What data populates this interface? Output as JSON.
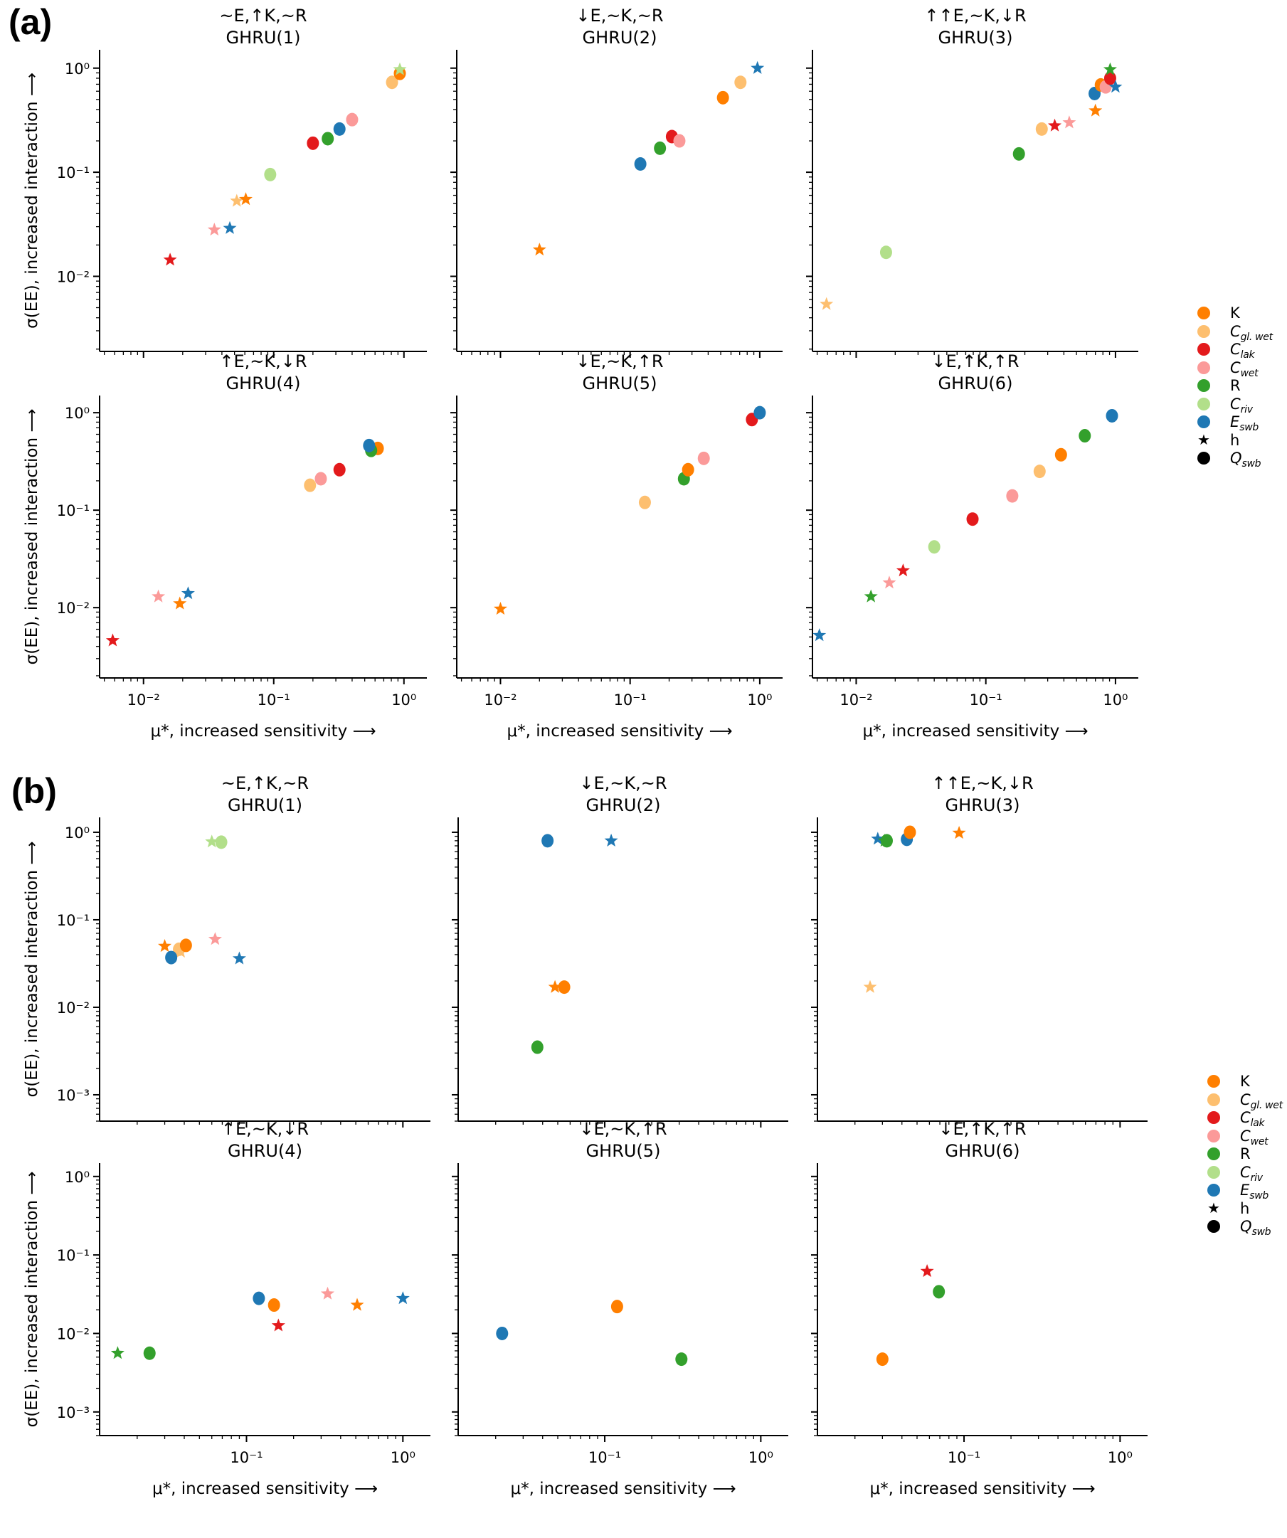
{
  "figure": {
    "panel_labels": [
      "(a)",
      "(b)"
    ],
    "legend": {
      "items": [
        {
          "key": "K",
          "label": "K",
          "sub": "",
          "italic": false,
          "color": "#ff7f00",
          "marker": "circle"
        },
        {
          "key": "Cglwet",
          "label": "C",
          "sub": "gl. wet",
          "italic": true,
          "color": "#fdbf6f",
          "marker": "circle"
        },
        {
          "key": "Clak",
          "label": "C",
          "sub": "lak",
          "italic": true,
          "color": "#e31a1c",
          "marker": "circle"
        },
        {
          "key": "Cwet",
          "label": "C",
          "sub": "wet",
          "italic": true,
          "color": "#fb9a99",
          "marker": "circle"
        },
        {
          "key": "R",
          "label": "R",
          "sub": "",
          "italic": false,
          "color": "#33a02c",
          "marker": "circle"
        },
        {
          "key": "Criv",
          "label": "C",
          "sub": "riv",
          "italic": true,
          "color": "#b2df8a",
          "marker": "circle"
        },
        {
          "key": "Eswb",
          "label": "E",
          "sub": "swb",
          "italic": true,
          "color": "#1f78b4",
          "marker": "circle"
        },
        {
          "key": "h",
          "label": "h",
          "sub": "",
          "italic": false,
          "color": "#000000",
          "marker": "star"
        },
        {
          "key": "Qswb",
          "label": "Q",
          "sub": "swb",
          "italic": true,
          "color": "#000000",
          "marker": "circle"
        }
      ]
    }
  },
  "chart_data": [
    {
      "type": "scatter",
      "panel": "(a)",
      "xscale": "log",
      "yscale": "log",
      "xlabel": "μ*, increased sensitivity ⟶",
      "ylabel": "σ(EE), increased interaction ⟶",
      "xlim": [
        0.0046,
        1.5
      ],
      "ylim": [
        0.0019,
        1.5
      ],
      "xticks": [
        0.01,
        0.1,
        1
      ],
      "xtick_labels": [
        "10⁻²",
        "10⁻¹",
        "10⁰"
      ],
      "yticks": [
        0.01,
        0.1,
        1
      ],
      "ytick_labels": [
        "10⁻²",
        "10⁻¹",
        "10⁰"
      ],
      "grid": false,
      "legend_position": "right",
      "subplots": [
        {
          "title": "~E,↑K,~R",
          "subtitle": "GHRU(1)",
          "points": [
            {
              "param": "Clak",
              "marker": "star",
              "x": 0.016,
              "y": 0.0144
            },
            {
              "param": "Cwet",
              "marker": "star",
              "x": 0.035,
              "y": 0.028
            },
            {
              "param": "Eswb",
              "marker": "star",
              "x": 0.046,
              "y": 0.029
            },
            {
              "param": "Cglwet",
              "marker": "star",
              "x": 0.052,
              "y": 0.053
            },
            {
              "param": "K",
              "marker": "star",
              "x": 0.061,
              "y": 0.055
            },
            {
              "param": "Criv",
              "marker": "circle",
              "x": 0.094,
              "y": 0.095
            },
            {
              "param": "Clak",
              "marker": "circle",
              "x": 0.2,
              "y": 0.19
            },
            {
              "param": "R",
              "marker": "circle",
              "x": 0.26,
              "y": 0.21
            },
            {
              "param": "Eswb",
              "marker": "circle",
              "x": 0.32,
              "y": 0.26
            },
            {
              "param": "Cwet",
              "marker": "circle",
              "x": 0.4,
              "y": 0.32
            },
            {
              "param": "Cglwet",
              "marker": "circle",
              "x": 0.81,
              "y": 0.73
            },
            {
              "param": "K",
              "marker": "circle",
              "x": 0.93,
              "y": 0.89
            },
            {
              "param": "Criv",
              "marker": "star",
              "x": 0.93,
              "y": 0.97
            }
          ]
        },
        {
          "title": "↓E,~K,~R",
          "subtitle": "GHRU(2)",
          "points": [
            {
              "param": "K",
              "marker": "star",
              "x": 0.02,
              "y": 0.018
            },
            {
              "param": "Eswb",
              "marker": "circle",
              "x": 0.12,
              "y": 0.12
            },
            {
              "param": "R",
              "marker": "circle",
              "x": 0.17,
              "y": 0.17
            },
            {
              "param": "Clak",
              "marker": "circle",
              "x": 0.21,
              "y": 0.22
            },
            {
              "param": "Cwet",
              "marker": "circle",
              "x": 0.24,
              "y": 0.2
            },
            {
              "param": "K",
              "marker": "circle",
              "x": 0.52,
              "y": 0.52
            },
            {
              "param": "Cglwet",
              "marker": "circle",
              "x": 0.71,
              "y": 0.73
            },
            {
              "param": "Eswb",
              "marker": "star",
              "x": 0.96,
              "y": 1.0
            }
          ]
        },
        {
          "title": "↑↑E,~K,↓R",
          "subtitle": "GHRU(3)",
          "points": [
            {
              "param": "Cglwet",
              "marker": "star",
              "x": 0.0059,
              "y": 0.0054
            },
            {
              "param": "Criv",
              "marker": "circle",
              "x": 0.017,
              "y": 0.017
            },
            {
              "param": "R",
              "marker": "circle",
              "x": 0.18,
              "y": 0.15
            },
            {
              "param": "Cglwet",
              "marker": "circle",
              "x": 0.27,
              "y": 0.26
            },
            {
              "param": "Clak",
              "marker": "star",
              "x": 0.34,
              "y": 0.28
            },
            {
              "param": "Cwet",
              "marker": "star",
              "x": 0.44,
              "y": 0.3
            },
            {
              "param": "K",
              "marker": "star",
              "x": 0.7,
              "y": 0.39
            },
            {
              "param": "Eswb",
              "marker": "circle",
              "x": 0.69,
              "y": 0.57
            },
            {
              "param": "K",
              "marker": "circle",
              "x": 0.77,
              "y": 0.69
            },
            {
              "param": "Cwet",
              "marker": "circle",
              "x": 0.84,
              "y": 0.66
            },
            {
              "param": "Clak",
              "marker": "circle",
              "x": 0.91,
              "y": 0.8
            },
            {
              "param": "R",
              "marker": "star",
              "x": 0.91,
              "y": 0.97
            },
            {
              "param": "Eswb",
              "marker": "star",
              "x": 1.0,
              "y": 0.66
            }
          ]
        },
        {
          "title": "↑E,~K,↓R",
          "subtitle": "GHRU(4)",
          "points": [
            {
              "param": "Clak",
              "marker": "star",
              "x": 0.0058,
              "y": 0.0046
            },
            {
              "param": "Cwet",
              "marker": "star",
              "x": 0.013,
              "y": 0.013
            },
            {
              "param": "K",
              "marker": "star",
              "x": 0.019,
              "y": 0.011
            },
            {
              "param": "Eswb",
              "marker": "star",
              "x": 0.022,
              "y": 0.014
            },
            {
              "param": "Cglwet",
              "marker": "circle",
              "x": 0.19,
              "y": 0.18
            },
            {
              "param": "Cwet",
              "marker": "circle",
              "x": 0.23,
              "y": 0.21
            },
            {
              "param": "Clak",
              "marker": "circle",
              "x": 0.32,
              "y": 0.26
            },
            {
              "param": "K",
              "marker": "circle",
              "x": 0.63,
              "y": 0.43
            },
            {
              "param": "R",
              "marker": "circle",
              "x": 0.56,
              "y": 0.41
            },
            {
              "param": "Eswb",
              "marker": "circle",
              "x": 0.54,
              "y": 0.46
            }
          ]
        },
        {
          "title": "↓E,~K,↑R",
          "subtitle": "GHRU(5)",
          "points": [
            {
              "param": "K",
              "marker": "star",
              "x": 0.01,
              "y": 0.0097
            },
            {
              "param": "Cglwet",
              "marker": "circle",
              "x": 0.13,
              "y": 0.12
            },
            {
              "param": "R",
              "marker": "circle",
              "x": 0.26,
              "y": 0.21
            },
            {
              "param": "K",
              "marker": "circle",
              "x": 0.28,
              "y": 0.26
            },
            {
              "param": "Cwet",
              "marker": "circle",
              "x": 0.37,
              "y": 0.34
            },
            {
              "param": "Clak",
              "marker": "circle",
              "x": 0.87,
              "y": 0.85
            },
            {
              "param": "Eswb",
              "marker": "circle",
              "x": 1.0,
              "y": 1.0
            }
          ]
        },
        {
          "title": "↓E,↑K,↑R",
          "subtitle": "GHRU(6)",
          "points": [
            {
              "param": "Eswb",
              "marker": "star",
              "x": 0.0052,
              "y": 0.0052
            },
            {
              "param": "R",
              "marker": "star",
              "x": 0.013,
              "y": 0.013
            },
            {
              "param": "Cwet",
              "marker": "star",
              "x": 0.018,
              "y": 0.018
            },
            {
              "param": "Clak",
              "marker": "star",
              "x": 0.023,
              "y": 0.024
            },
            {
              "param": "Criv",
              "marker": "circle",
              "x": 0.04,
              "y": 0.042
            },
            {
              "param": "Clak",
              "marker": "circle",
              "x": 0.079,
              "y": 0.081
            },
            {
              "param": "Cwet",
              "marker": "circle",
              "x": 0.16,
              "y": 0.14
            },
            {
              "param": "Cglwet",
              "marker": "circle",
              "x": 0.26,
              "y": 0.25
            },
            {
              "param": "K",
              "marker": "circle",
              "x": 0.38,
              "y": 0.37
            },
            {
              "param": "R",
              "marker": "circle",
              "x": 0.58,
              "y": 0.58
            },
            {
              "param": "Eswb",
              "marker": "circle",
              "x": 0.94,
              "y": 0.93
            }
          ]
        }
      ]
    },
    {
      "type": "scatter",
      "panel": "(b)",
      "xscale": "log",
      "yscale": "log",
      "xlabel": "μ*, increased sensitivity ⟶",
      "ylabel": "σ(EE), increased interaction ⟶",
      "xlim": [
        0.0115,
        1.5
      ],
      "ylim": [
        0.0005,
        1.48
      ],
      "xticks": [
        0.1,
        1
      ],
      "xtick_labels": [
        "10⁻¹",
        "10⁰"
      ],
      "yticks": [
        0.001,
        0.01,
        0.1,
        1
      ],
      "ytick_labels": [
        "10⁻³",
        "10⁻²",
        "10⁻¹",
        "10⁰"
      ],
      "grid": false,
      "legend_position": "right",
      "subplots": [
        {
          "title": "~E,↑K,~R",
          "subtitle": "GHRU(1)",
          "points": [
            {
              "param": "Criv",
              "marker": "star",
              "x": 0.06,
              "y": 0.78
            },
            {
              "param": "Criv",
              "marker": "circle",
              "x": 0.069,
              "y": 0.77
            },
            {
              "param": "K",
              "marker": "star",
              "x": 0.03,
              "y": 0.05
            },
            {
              "param": "Cglwet",
              "marker": "star",
              "x": 0.038,
              "y": 0.043
            },
            {
              "param": "Cglwet",
              "marker": "circle",
              "x": 0.037,
              "y": 0.046
            },
            {
              "param": "K",
              "marker": "circle",
              "x": 0.041,
              "y": 0.051
            },
            {
              "param": "Eswb",
              "marker": "circle",
              "x": 0.033,
              "y": 0.037
            },
            {
              "param": "Cwet",
              "marker": "star",
              "x": 0.063,
              "y": 0.06
            },
            {
              "param": "Eswb",
              "marker": "star",
              "x": 0.09,
              "y": 0.036
            }
          ]
        },
        {
          "title": "↓E,~K,~R",
          "subtitle": "GHRU(2)",
          "points": [
            {
              "param": "Eswb",
              "marker": "circle",
              "x": 0.043,
              "y": 0.8
            },
            {
              "param": "Eswb",
              "marker": "star",
              "x": 0.11,
              "y": 0.8
            },
            {
              "param": "K",
              "marker": "star",
              "x": 0.048,
              "y": 0.017
            },
            {
              "param": "K",
              "marker": "circle",
              "x": 0.055,
              "y": 0.017
            },
            {
              "param": "R",
              "marker": "circle",
              "x": 0.037,
              "y": 0.0035
            }
          ]
        },
        {
          "title": "↑↑E,~K,↓R",
          "subtitle": "GHRU(3)",
          "points": [
            {
              "param": "Cglwet",
              "marker": "star",
              "x": 0.025,
              "y": 0.017
            },
            {
              "param": "Eswb",
              "marker": "star",
              "x": 0.028,
              "y": 0.84
            },
            {
              "param": "R",
              "marker": "star",
              "x": 0.031,
              "y": 0.8
            },
            {
              "param": "R",
              "marker": "circle",
              "x": 0.032,
              "y": 0.8
            },
            {
              "param": "Eswb",
              "marker": "circle",
              "x": 0.043,
              "y": 0.83
            },
            {
              "param": "K",
              "marker": "circle",
              "x": 0.045,
              "y": 1.0
            },
            {
              "param": "K",
              "marker": "star",
              "x": 0.093,
              "y": 0.98
            }
          ]
        },
        {
          "title": "↑E,~K,↓R",
          "subtitle": "GHRU(4)",
          "points": [
            {
              "param": "R",
              "marker": "star",
              "x": 0.015,
              "y": 0.0056
            },
            {
              "param": "R",
              "marker": "circle",
              "x": 0.024,
              "y": 0.0056
            },
            {
              "param": "Eswb",
              "marker": "circle",
              "x": 0.12,
              "y": 0.028
            },
            {
              "param": "K",
              "marker": "circle",
              "x": 0.15,
              "y": 0.023
            },
            {
              "param": "Clak",
              "marker": "star",
              "x": 0.16,
              "y": 0.0126
            },
            {
              "param": "Cwet",
              "marker": "star",
              "x": 0.33,
              "y": 0.032
            },
            {
              "param": "K",
              "marker": "star",
              "x": 0.51,
              "y": 0.023
            },
            {
              "param": "Eswb",
              "marker": "star",
              "x": 1.0,
              "y": 0.028
            }
          ]
        },
        {
          "title": "↓E,~K,↑R",
          "subtitle": "GHRU(5)",
          "points": [
            {
              "param": "Eswb",
              "marker": "circle",
              "x": 0.022,
              "y": 0.01
            },
            {
              "param": "K",
              "marker": "circle",
              "x": 0.12,
              "y": 0.022
            },
            {
              "param": "R",
              "marker": "circle",
              "x": 0.31,
              "y": 0.0047
            }
          ]
        },
        {
          "title": "↓E,↑K,↑R",
          "subtitle": "GHRU(6)",
          "points": [
            {
              "param": "K",
              "marker": "circle",
              "x": 0.03,
              "y": 0.0047
            },
            {
              "param": "Clak",
              "marker": "star",
              "x": 0.058,
              "y": 0.062
            },
            {
              "param": "R",
              "marker": "circle",
              "x": 0.069,
              "y": 0.034
            }
          ]
        }
      ]
    }
  ]
}
